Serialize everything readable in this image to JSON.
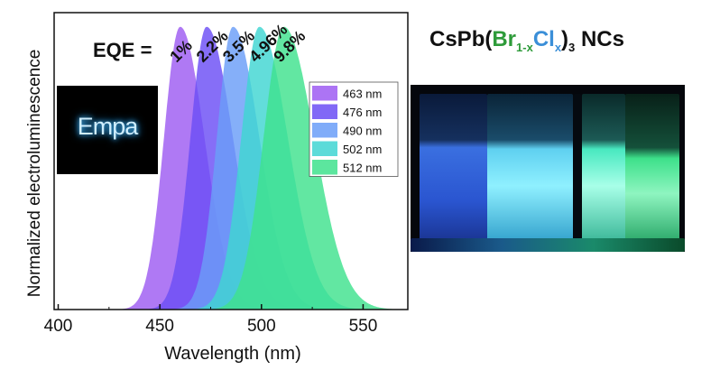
{
  "chart_data": {
    "type": "area",
    "xlabel": "Wavelength (nm)",
    "ylabel": "Normalized electroluminescence",
    "xlim": [
      398,
      572
    ],
    "ylim": [
      0,
      1.05
    ],
    "xticks": [
      400,
      450,
      500,
      550
    ],
    "eqe_label": "EQE =",
    "legend_position": "right",
    "grid": false,
    "series": [
      {
        "name": "463 nm",
        "peak": 460,
        "fwhm_left": 8,
        "fwhm_right": 12,
        "color": "#9d5cf2",
        "eqe": "1%"
      },
      {
        "name": "476 nm",
        "peak": 473,
        "fwhm_left": 8,
        "fwhm_right": 13,
        "color": "#6b4ef5",
        "eqe": "2.2%"
      },
      {
        "name": "490 nm",
        "peak": 486,
        "fwhm_left": 8,
        "fwhm_right": 13,
        "color": "#6a9ef8",
        "eqe": "3.5%"
      },
      {
        "name": "502 nm",
        "peak": 499,
        "fwhm_left": 9,
        "fwhm_right": 14,
        "color": "#3fd5d2",
        "eqe": "4.96%"
      },
      {
        "name": "512 nm",
        "peak": 511,
        "fwhm_left": 10,
        "fwhm_right": 15,
        "color": "#3fe28d",
        "eqe": "9.8%"
      }
    ]
  },
  "logo": {
    "text": "Empa"
  },
  "photo": {
    "title_main": "CsPb(",
    "title_br": "Br",
    "title_br_sub": "1-x",
    "title_cl": "Cl",
    "title_cl_sub": "x",
    "title_close": ")",
    "title_sub3": "3",
    "title_end": " NCs"
  }
}
